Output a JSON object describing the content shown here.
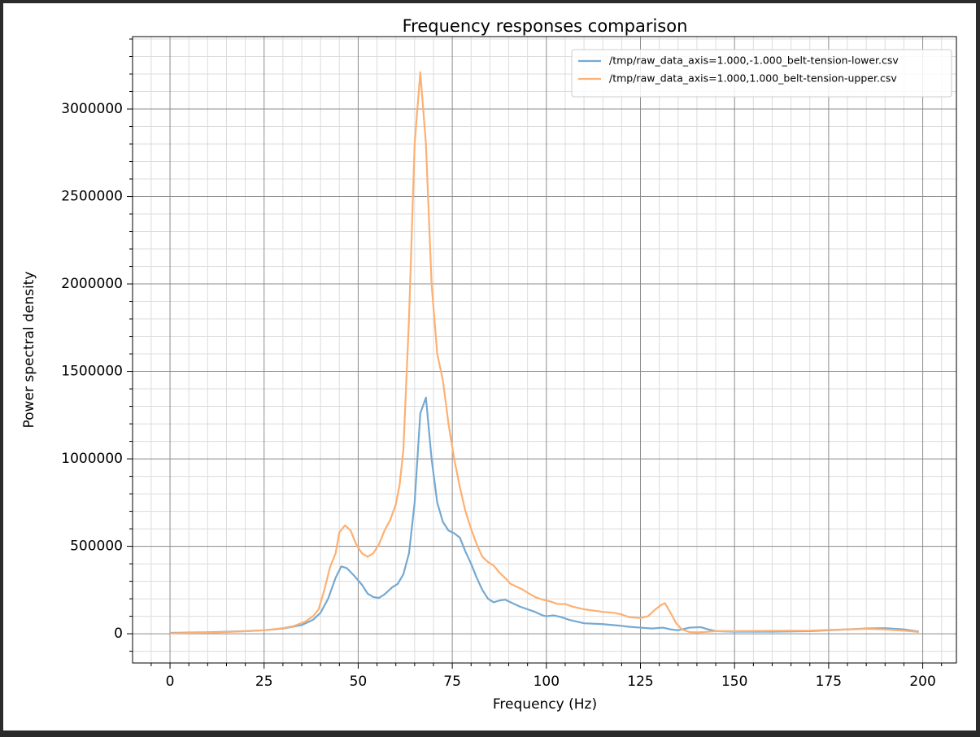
{
  "chart_data": {
    "type": "line",
    "title": "Frequency responses comparison",
    "x_label": "Frequency (Hz)",
    "y_label": "Power spectral density",
    "xlim": [
      -9.95,
      208.95
    ],
    "ylim": [
      -167000,
      3414000
    ],
    "xticks": [
      0,
      25,
      50,
      75,
      100,
      125,
      150,
      175,
      200
    ],
    "yticks": [
      0,
      500000,
      1000000,
      1500000,
      2000000,
      2500000,
      3000000
    ],
    "xminorticks": [
      -5,
      5,
      10,
      15,
      20,
      30,
      35,
      40,
      45,
      55,
      60,
      65,
      70,
      80,
      85,
      90,
      95,
      105,
      110,
      115,
      120,
      130,
      135,
      140,
      145,
      155,
      160,
      165,
      170,
      180,
      185,
      190,
      195,
      205
    ],
    "yminorticks": [
      -100000,
      100000,
      200000,
      300000,
      400000,
      600000,
      700000,
      800000,
      900000,
      1100000,
      1200000,
      1300000,
      1400000,
      1600000,
      1700000,
      1800000,
      1900000,
      2100000,
      2200000,
      2300000,
      2400000,
      2600000,
      2700000,
      2800000,
      2900000,
      3100000,
      3200000,
      3300000,
      3400000
    ],
    "grid": true,
    "minor_grid": true,
    "legend_position": "upper-right",
    "series": [
      {
        "name": "/tmp/raw_data_axis=1.000,-1.000_belt-tension-lower.csv",
        "color": "#75a9d2",
        "x": [
          0,
          10,
          20,
          25,
          30,
          35,
          38,
          40,
          42,
          44,
          45.5,
          47,
          49,
          51,
          52.5,
          54,
          55.5,
          57,
          59,
          60.5,
          62,
          63.5,
          65,
          66.5,
          68,
          69.5,
          71,
          72.5,
          74,
          75.5,
          77,
          78.5,
          80,
          81.5,
          83,
          84.5,
          86,
          87.5,
          89,
          91,
          93,
          95,
          97,
          99,
          100,
          102,
          104,
          106,
          110,
          115,
          120,
          122,
          125,
          128,
          131,
          133,
          135,
          138,
          141,
          143,
          145,
          150,
          160,
          170,
          175,
          180,
          185,
          190,
          195,
          199
        ],
        "values": [
          5000,
          8000,
          15000,
          20000,
          30000,
          50000,
          80000,
          120000,
          200000,
          320000,
          385000,
          375000,
          330000,
          280000,
          230000,
          210000,
          205000,
          225000,
          265000,
          285000,
          340000,
          460000,
          750000,
          1260000,
          1350000,
          1000000,
          750000,
          640000,
          590000,
          575000,
          550000,
          470000,
          400000,
          320000,
          250000,
          200000,
          180000,
          190000,
          195000,
          175000,
          155000,
          140000,
          125000,
          105000,
          100000,
          105000,
          95000,
          80000,
          60000,
          55000,
          45000,
          40000,
          35000,
          30000,
          35000,
          25000,
          20000,
          35000,
          38000,
          25000,
          15000,
          12000,
          12000,
          15000,
          20000,
          25000,
          30000,
          32000,
          25000,
          12000
        ]
      },
      {
        "name": "/tmp/raw_data_axis=1.000,1.000_belt-tension-upper.csv",
        "color": "#fdb072",
        "x": [
          0,
          10,
          20,
          25,
          30,
          33,
          36,
          38,
          39.5,
          41,
          42.5,
          44,
          45,
          46.5,
          48,
          49.5,
          51,
          52.5,
          54,
          55.5,
          57,
          58.5,
          60,
          61,
          62,
          63.5,
          65,
          66.5,
          68,
          69.5,
          71,
          72.5,
          74,
          75.5,
          77,
          78.5,
          80,
          81.5,
          83,
          84.5,
          86,
          87.5,
          89,
          90.5,
          92,
          93.5,
          95,
          97,
          99,
          101,
          103,
          105,
          107,
          110,
          115,
          118,
          120,
          122,
          125,
          127,
          129,
          130.5,
          131.5,
          133,
          134.5,
          136,
          138,
          140,
          142,
          145,
          150,
          160,
          170,
          175,
          180,
          185,
          190,
          195,
          199
        ],
        "values": [
          3000,
          6000,
          14000,
          20000,
          32000,
          45000,
          70000,
          100000,
          140000,
          250000,
          380000,
          460000,
          580000,
          620000,
          590000,
          510000,
          460000,
          440000,
          460000,
          510000,
          590000,
          650000,
          740000,
          850000,
          1050000,
          1800000,
          2800000,
          3210000,
          2800000,
          2000000,
          1600000,
          1450000,
          1200000,
          1000000,
          840000,
          700000,
          600000,
          510000,
          440000,
          410000,
          390000,
          350000,
          320000,
          285000,
          270000,
          255000,
          235000,
          210000,
          195000,
          185000,
          170000,
          170000,
          155000,
          140000,
          125000,
          120000,
          110000,
          95000,
          90000,
          100000,
          140000,
          165000,
          175000,
          120000,
          60000,
          25000,
          10000,
          8000,
          10000,
          15000,
          15000,
          17000,
          18000,
          22000,
          25000,
          28000,
          25000,
          18000,
          10000
        ]
      }
    ]
  }
}
